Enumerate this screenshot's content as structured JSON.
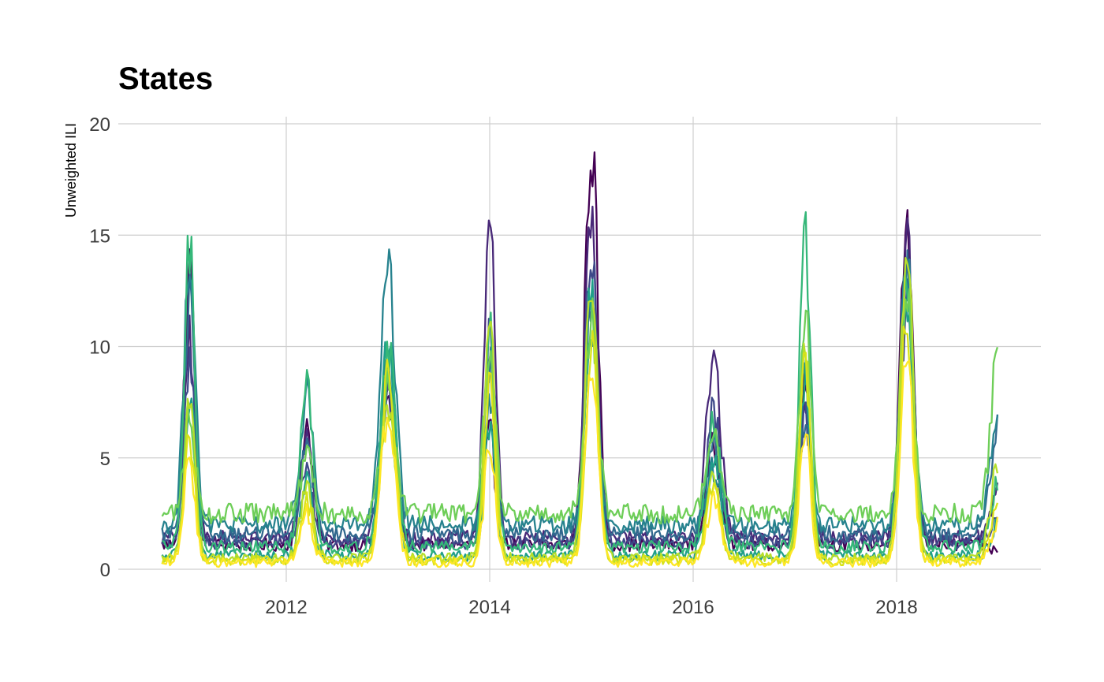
{
  "chart_data": {
    "type": "line",
    "title": "States",
    "xlabel": "",
    "ylabel": "Unweighted ILI",
    "xlim": [
      2010.75,
      2019.0
    ],
    "ylim": [
      0,
      20
    ],
    "x_ticks": [
      2012,
      2014,
      2016,
      2018
    ],
    "x_tick_labels": [
      "2012",
      "2014",
      "2016",
      "2018"
    ],
    "y_ticks": [
      0,
      5,
      10,
      15,
      20
    ],
    "y_tick_labels": [
      "0",
      "5",
      "10",
      "15",
      "20"
    ],
    "grid": true,
    "legend": "none",
    "seasons": [
      2011.05,
      2012.2,
      2013.0,
      2014.0,
      2015.0,
      2016.2,
      2017.1,
      2018.1
    ],
    "series": [
      {
        "color": "#440154",
        "base": 1.1,
        "peaks": [
          13.5,
          6.5,
          7.5,
          6.0,
          19.4,
          5.5,
          8.5,
          15.4
        ],
        "end": 0.8
      },
      {
        "color": "#482878",
        "base": 1.4,
        "peaks": [
          10.5,
          6.0,
          9.0,
          16.3,
          16.1,
          9.5,
          8.0,
          14.8
        ],
        "end": 3.5
      },
      {
        "color": "#3e4989",
        "base": 1.2,
        "peaks": [
          9.0,
          4.5,
          8.0,
          10.5,
          14.5,
          7.0,
          7.0,
          12.0
        ],
        "end": 2.5
      },
      {
        "color": "#31688e",
        "base": 1.6,
        "peaks": [
          12.0,
          5.5,
          9.5,
          9.0,
          12.0,
          5.5,
          6.5,
          13.0
        ],
        "end": 6.5
      },
      {
        "color": "#26828e",
        "base": 2.0,
        "peaks": [
          14.7,
          8.0,
          13.2,
          7.5,
          11.0,
          4.5,
          9.0,
          13.8
        ],
        "end": 7.5
      },
      {
        "color": "#1f9e89",
        "base": 0.6,
        "peaks": [
          8.0,
          4.0,
          10.0,
          6.5,
          12.5,
          5.0,
          8.5,
          12.5
        ],
        "end": 2.0
      },
      {
        "color": "#35b779",
        "base": 1.0,
        "peaks": [
          14.3,
          8.2,
          10.3,
          10.5,
          11.0,
          6.5,
          15.5,
          13.5
        ],
        "end": 4.0
      },
      {
        "color": "#6ece58",
        "base": 2.5,
        "peaks": [
          7.0,
          5.0,
          8.0,
          10.5,
          11.5,
          6.0,
          12.0,
          12.5
        ],
        "end": 9.8
      },
      {
        "color": "#b5de2b",
        "base": 0.5,
        "peaks": [
          7.5,
          3.5,
          7.5,
          11.0,
          12.8,
          4.0,
          10.5,
          14.5
        ],
        "end": 5.0
      },
      {
        "color": "#d8e219",
        "base": 0.4,
        "peaks": [
          6.0,
          3.0,
          8.5,
          8.0,
          10.0,
          3.5,
          9.0,
          11.0
        ],
        "end": 3.0
      },
      {
        "color": "#fde725",
        "base": 0.3,
        "peaks": [
          5.0,
          2.5,
          7.0,
          5.5,
          9.0,
          3.0,
          6.0,
          9.5
        ],
        "end": 2.0
      }
    ]
  }
}
